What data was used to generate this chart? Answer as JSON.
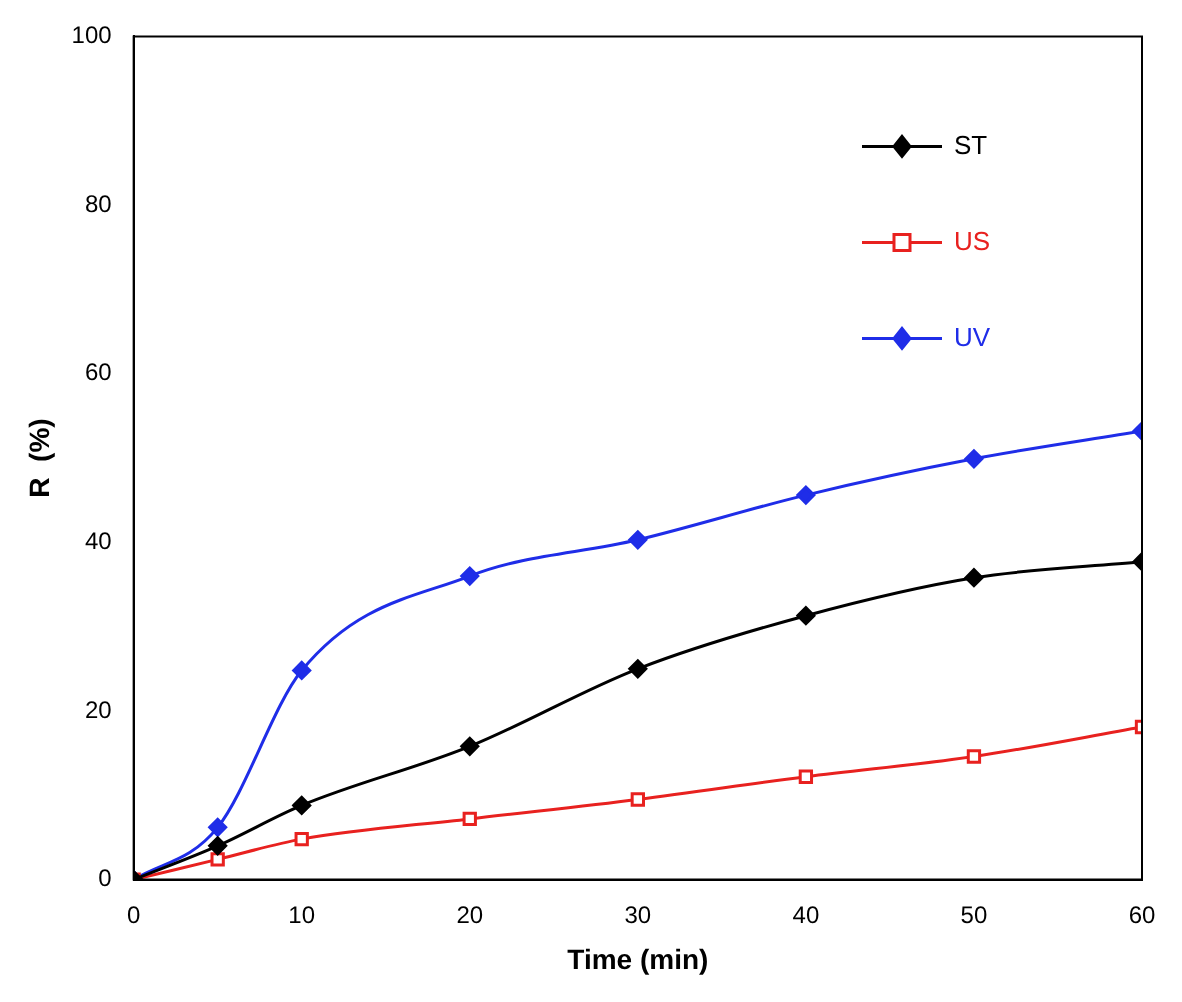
{
  "chart_data": {
    "type": "line",
    "xlabel": "Time (min)",
    "ylabel": "R  (%)",
    "x": [
      0,
      5,
      10,
      20,
      30,
      40,
      50,
      60
    ],
    "xlim": [
      0,
      60
    ],
    "xticks": [
      0,
      10,
      20,
      30,
      40,
      50,
      60
    ],
    "ylim": [
      0,
      100
    ],
    "yticks": [
      0,
      20,
      40,
      60,
      80,
      100
    ],
    "grid": false,
    "legend": "top right",
    "series": [
      {
        "name": "ST",
        "color": "#000000",
        "marker": "diamond",
        "values": [
          0,
          4,
          8.8,
          15.8,
          25,
          31.3,
          35.8,
          37.7
        ]
      },
      {
        "name": "US",
        "color": "#e8211f",
        "marker": "square",
        "values": [
          0,
          2.4,
          4.8,
          7.2,
          9.5,
          12.2,
          14.6,
          18.1
        ]
      },
      {
        "name": "UV",
        "color": "#1f2de8",
        "marker": "diamond",
        "values": [
          0,
          6.2,
          24.8,
          36,
          40.3,
          45.6,
          49.9,
          53.2
        ]
      }
    ]
  }
}
